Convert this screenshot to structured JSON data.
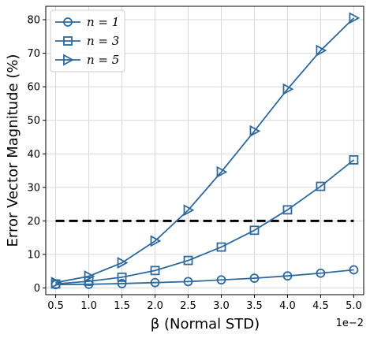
{
  "chart_data": {
    "type": "line",
    "xlabel": "β (Normal STD)",
    "ylabel": "Error Vector Magnitude (%)",
    "x_offset_label": "1e−2",
    "x": [
      0.5,
      1.0,
      1.5,
      2.0,
      2.5,
      3.0,
      3.5,
      4.0,
      4.5,
      5.0
    ],
    "x_ticks": [
      "0.5",
      "1.0",
      "1.5",
      "2.0",
      "2.5",
      "3.0",
      "3.5",
      "4.0",
      "4.5",
      "5.0"
    ],
    "y_ticks": [
      "0",
      "10",
      "20",
      "30",
      "40",
      "50",
      "60",
      "70",
      "80"
    ],
    "xlim": [
      0.35,
      5.15
    ],
    "ylim": [
      -2,
      84
    ],
    "grid": true,
    "legend_position": "top-left",
    "series": [
      {
        "name": "n = 1",
        "marker": "circle",
        "color": "#2e6a9e",
        "values": [
          1.0,
          1.1,
          1.3,
          1.6,
          1.9,
          2.4,
          2.9,
          3.6,
          4.4,
          5.4
        ]
      },
      {
        "name": "n = 3",
        "marker": "square",
        "color": "#2e6a9e",
        "values": [
          1.2,
          2.0,
          3.2,
          5.2,
          8.2,
          12.2,
          17.2,
          23.3,
          30.3,
          38.2
        ]
      },
      {
        "name": "n = 5",
        "marker": "triangle-right",
        "color": "#2e6a9e",
        "values": [
          1.6,
          3.5,
          7.5,
          14.0,
          23.2,
          34.6,
          46.8,
          59.3,
          70.8,
          80.5
        ]
      }
    ],
    "reference_line": {
      "y": 20,
      "style": "dashed",
      "color": "#000000",
      "x_range": [
        0.5,
        5.0
      ]
    }
  }
}
